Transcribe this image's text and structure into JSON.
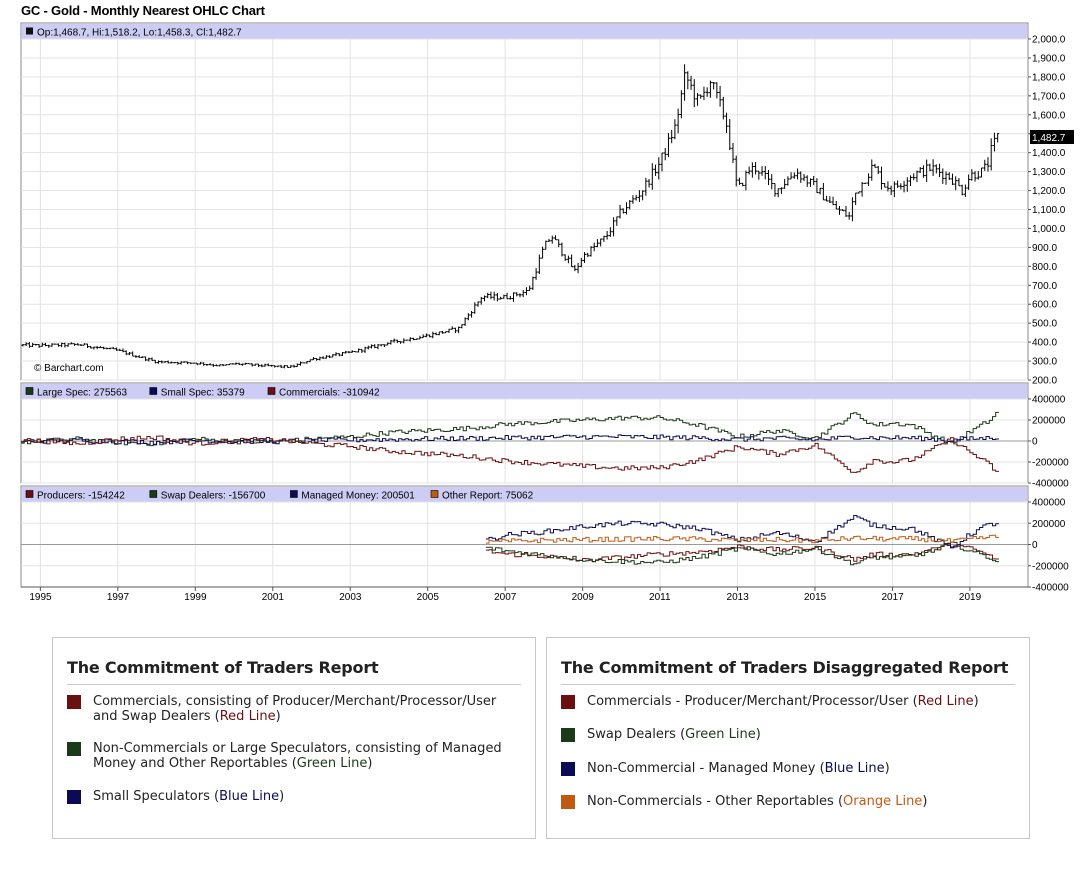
{
  "title": "GC - Gold - Monthly Nearest OHLC Chart",
  "chart_data": [
    {
      "id": "price",
      "type": "ohlc",
      "info_label": "Op:1,468.7, Hi:1,518.2, Lo:1,458.3, Cl:1,482.7",
      "watermark": "© Barchart.com",
      "last_price_label": "1,482.7",
      "last_price": 1482.7,
      "ylim": [
        200,
        2000
      ],
      "yticks": [
        "2,000.0",
        "1,900.0",
        "1,800.0",
        "1,700.0",
        "1,600.0",
        "1,500.0",
        "1,400.0",
        "1,300.0",
        "1,200.0",
        "1,100.0",
        "1,000.0",
        "900.0",
        "800.0",
        "700.0",
        "600.0",
        "500.0",
        "400.0",
        "300.0",
        "200.0"
      ],
      "ytick_values": [
        2000,
        1900,
        1800,
        1700,
        1600,
        1500,
        1400,
        1300,
        1200,
        1100,
        1000,
        900,
        800,
        700,
        600,
        500,
        400,
        300,
        200
      ],
      "x": [
        1994.5,
        1995,
        1996,
        1997,
        1997.5,
        1998,
        1999,
        1999.7,
        2000,
        2001,
        2001.5,
        2002,
        2003,
        2004,
        2005,
        2005.8,
        2006,
        2006.4,
        2007,
        2007.6,
        2008,
        2008.2,
        2008.8,
        2009,
        2009.6,
        2010,
        2010.5,
        2011,
        2011.4,
        2011.65,
        2012,
        2012.3,
        2012.7,
        2013,
        2013.3,
        2013.5,
        2014,
        2014.5,
        2015,
        2015.5,
        2015.9,
        2016,
        2016.5,
        2016.8,
        2017,
        2017.5,
        2018,
        2018.5,
        2018.8,
        2019,
        2019.3,
        2019.45,
        2019.55,
        2019.7
      ],
      "close": [
        384,
        382,
        387,
        355,
        325,
        296,
        290,
        275,
        286,
        272,
        269,
        310,
        345,
        397,
        435,
        472,
        530,
        640,
        636,
        670,
        900,
        960,
        775,
        850,
        955,
        1090,
        1190,
        1350,
        1540,
        1810,
        1660,
        1780,
        1570,
        1200,
        1310,
        1320,
        1200,
        1300,
        1220,
        1110,
        1061,
        1170,
        1330,
        1230,
        1210,
        1280,
        1320,
        1270,
        1200,
        1280,
        1300,
        1330,
        1410,
        1482.7
      ]
    },
    {
      "id": "cot",
      "type": "step-line",
      "legend": [
        {
          "label": "Large Spec: 275563",
          "color": "#1b3a17"
        },
        {
          "label": "Small Spec: 35379",
          "color": "#0b0b55"
        },
        {
          "label": "Commercials: -310942",
          "color": "#6b1010"
        }
      ],
      "ylim": [
        -400000,
        400000
      ],
      "yticks": [
        "400000",
        "200000",
        "0",
        "-200000",
        "-400000"
      ],
      "ytick_values": [
        400000,
        200000,
        0,
        -200000,
        -400000
      ],
      "x": [
        1994.5,
        1996,
        1997,
        1998,
        1999,
        2000,
        2001,
        2002,
        2003,
        2004,
        2005,
        2006,
        2007,
        2008,
        2009,
        2010,
        2011,
        2012,
        2013,
        2014,
        2015,
        2016,
        2016.5,
        2017,
        2017.5,
        2018,
        2018.5,
        2019,
        2019.5,
        2019.7
      ],
      "series": [
        {
          "name": "Large Spec",
          "color": "#1b3a17",
          "values": [
            -10000,
            20000,
            -15000,
            -25000,
            20000,
            -5000,
            -10000,
            20000,
            40000,
            80000,
            100000,
            120000,
            160000,
            180000,
            200000,
            220000,
            220000,
            150000,
            40000,
            100000,
            30000,
            260000,
            150000,
            170000,
            150000,
            60000,
            -20000,
            90000,
            200000,
            275563
          ]
        },
        {
          "name": "Small Spec",
          "color": "#0b0b55",
          "values": [
            0,
            5000,
            -5000,
            -10000,
            5000,
            0,
            -5000,
            5000,
            10000,
            15000,
            20000,
            25000,
            30000,
            35000,
            40000,
            40000,
            35000,
            30000,
            15000,
            25000,
            10000,
            40000,
            30000,
            30000,
            28000,
            20000,
            5000,
            20000,
            30000,
            35379
          ]
        },
        {
          "name": "Commercials",
          "color": "#6b1010",
          "values": [
            10000,
            -25000,
            20000,
            35000,
            -25000,
            5000,
            15000,
            -25000,
            -50000,
            -95000,
            -120000,
            -145000,
            -190000,
            -215000,
            -240000,
            -260000,
            -255000,
            -180000,
            -55000,
            -125000,
            -40000,
            -300000,
            -180000,
            -200000,
            -178000,
            -80000,
            15000,
            -110000,
            -230000,
            -310942
          ]
        }
      ]
    },
    {
      "id": "disagg",
      "type": "step-line",
      "legend": [
        {
          "label": "Producers: -154242",
          "color": "#6b1010"
        },
        {
          "label": "Swap Dealers: -156700",
          "color": "#1b3a17"
        },
        {
          "label": "Managed Money: 200501",
          "color": "#0b0b55"
        },
        {
          "label": "Other Report: 75062",
          "color": "#c05a10"
        }
      ],
      "ylim": [
        -400000,
        400000
      ],
      "yticks": [
        "400000",
        "200000",
        "0",
        "-200000",
        "-400000"
      ],
      "ytick_values": [
        400000,
        200000,
        0,
        -200000,
        -400000
      ],
      "x": [
        2006.5,
        2007,
        2008,
        2009,
        2010,
        2011,
        2012,
        2013,
        2014,
        2015,
        2016,
        2016.5,
        2017,
        2017.5,
        2018,
        2018.5,
        2019,
        2019.4,
        2019.7
      ],
      "series": [
        {
          "name": "Producers",
          "color": "#6b1010",
          "values": [
            -60000,
            -90000,
            -110000,
            -150000,
            -120000,
            -90000,
            -70000,
            -20000,
            -50000,
            -30000,
            -140000,
            -90000,
            -100000,
            -90000,
            -50000,
            0,
            -40000,
            -90000,
            -154242
          ]
        },
        {
          "name": "Swap Dealers",
          "color": "#1b3a17",
          "values": [
            -30000,
            -60000,
            -100000,
            -140000,
            -160000,
            -170000,
            -120000,
            -40000,
            -90000,
            -40000,
            -180000,
            -120000,
            -120000,
            -110000,
            -60000,
            10000,
            -60000,
            -110000,
            -156700
          ]
        },
        {
          "name": "Managed Money",
          "color": "#0b0b55",
          "values": [
            40000,
            90000,
            120000,
            170000,
            200000,
            190000,
            150000,
            40000,
            110000,
            30000,
            260000,
            180000,
            160000,
            150000,
            60000,
            -30000,
            100000,
            180000,
            200501
          ]
        },
        {
          "name": "Other Report",
          "color": "#c05a10",
          "values": [
            20000,
            30000,
            40000,
            45000,
            50000,
            55000,
            50000,
            40000,
            45000,
            35000,
            60000,
            55000,
            50000,
            55000,
            45000,
            30000,
            50000,
            65000,
            75062
          ]
        }
      ]
    }
  ],
  "x_axis": {
    "labels": [
      "1995",
      "1997",
      "1999",
      "2001",
      "2003",
      "2005",
      "2007",
      "2009",
      "2011",
      "2013",
      "2015",
      "2017",
      "2019"
    ],
    "values": [
      1995,
      1997,
      1999,
      2001,
      2003,
      2005,
      2007,
      2009,
      2011,
      2013,
      2015,
      2017,
      2019
    ],
    "range": [
      1994.5,
      2020.5
    ]
  },
  "legend_left": {
    "title": "The Commitment of Traders Report",
    "items": [
      {
        "text": "Commercials, consisting of Producer/Merchant/Processor/User and Swap Dealers (",
        "hl": "Red Line",
        "tail": ")",
        "color": "#6b1010"
      },
      {
        "text": "Non-Commercials or Large Speculators, consisting of Managed Money and Other Reportables (",
        "hl": "Green Line",
        "tail": ")",
        "color": "#1b3a17"
      },
      {
        "text": "Small Speculators (",
        "hl": "Blue Line",
        "tail": ")",
        "color": "#0b0b55"
      }
    ]
  },
  "legend_right": {
    "title": "The Commitment of Traders Disaggregated Report",
    "items": [
      {
        "text": "Commercials - Producer/Merchant/Processor/User (",
        "hl": "Red Line",
        "tail": ")",
        "color": "#6b1010"
      },
      {
        "text": "Swap Dealers (",
        "hl": "Green Line",
        "tail": ")",
        "color": "#1b3a17"
      },
      {
        "text": "Non-Commercial - Managed Money (",
        "hl": "Blue Line",
        "tail": ")",
        "color": "#0b0b55"
      },
      {
        "text": "Non-Commercials - Other Reportables (",
        "hl": "Orange Line",
        "tail": ")",
        "color": "#c05a10"
      }
    ]
  }
}
